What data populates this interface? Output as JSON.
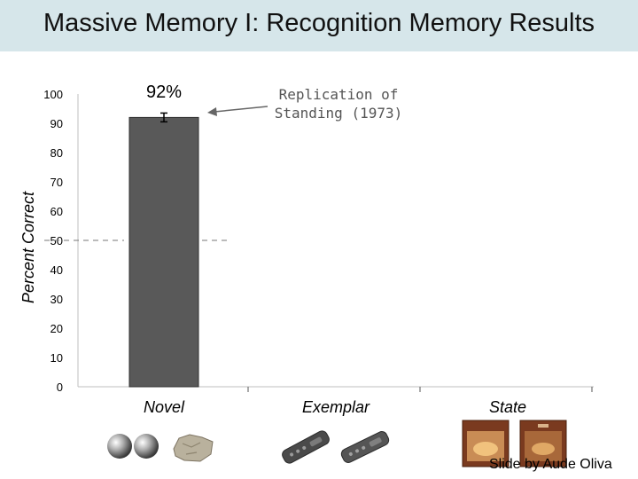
{
  "slide": {
    "title": "Massive Memory I: Recognition Memory Results",
    "credit": "Slide by Aude Oliva"
  },
  "chart_data": {
    "type": "bar",
    "categories": [
      "Novel",
      "Exemplar",
      "State"
    ],
    "values": [
      92,
      null,
      null
    ],
    "error": [
      1.5,
      null,
      null
    ],
    "data_labels": [
      "92%",
      "",
      ""
    ],
    "ylabel": "Percent Correct",
    "ylim": [
      0,
      100
    ],
    "yticks": [
      0,
      10,
      20,
      30,
      40,
      50,
      60,
      70,
      80,
      90,
      100
    ],
    "chance_line": 50,
    "annotation": [
      "Replication of",
      "Standing (1973)"
    ],
    "grid": false,
    "colors": {
      "bar": "#595959",
      "axis": "#bfbfbf",
      "title_band": "#d6e6ea",
      "annotation": "#555555"
    }
  },
  "images": [
    {
      "icon": "metal-balls-icon",
      "category": "Novel"
    },
    {
      "icon": "rock-icon",
      "category": "Novel"
    },
    {
      "icon": "remote-control-icon",
      "category": "Exemplar"
    },
    {
      "icon": "remote-control-icon",
      "category": "Exemplar"
    },
    {
      "icon": "open-box-icon",
      "category": "State"
    },
    {
      "icon": "closed-box-icon",
      "category": "State"
    }
  ]
}
